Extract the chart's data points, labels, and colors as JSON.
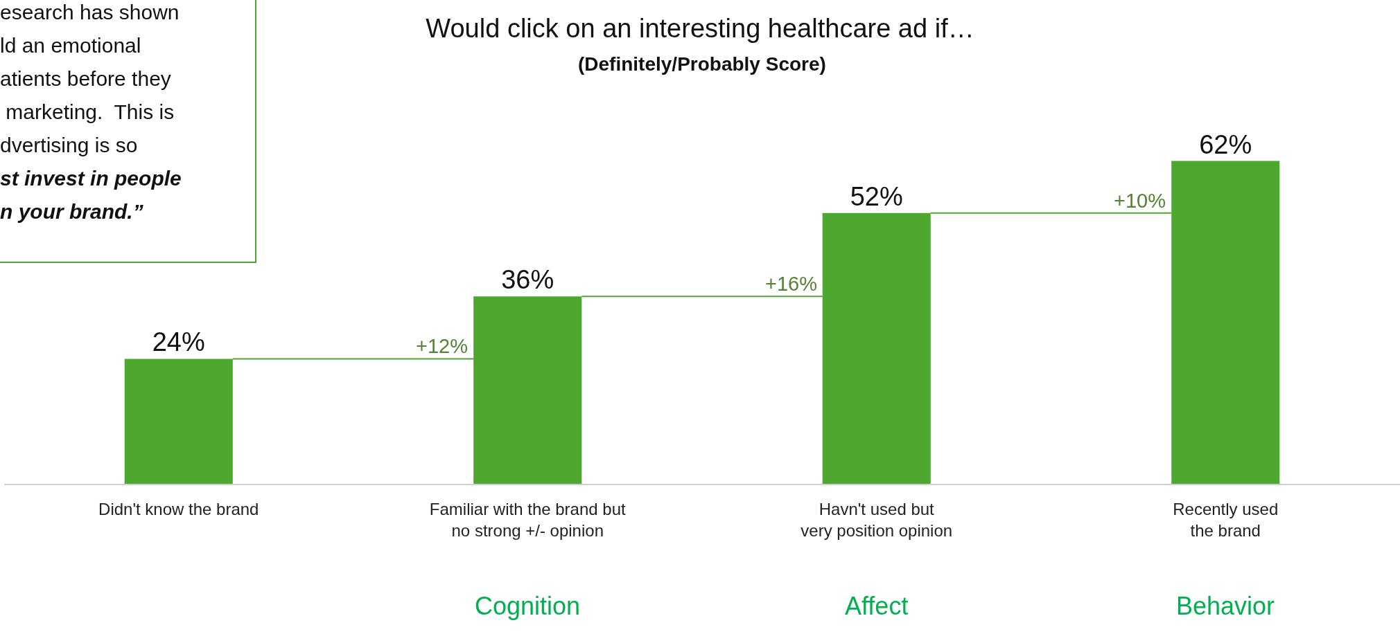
{
  "chart_data": {
    "type": "bar",
    "title": "Would click on an interesting healthcare ad if…",
    "subtitle": "(Definitely/Probably Score)",
    "categories": [
      "Didn't know the brand",
      "Familiar with the brand but\nno strong +/- opinion",
      "Havn't used but\nvery position opinion",
      "Recently used\nthe brand"
    ],
    "values": [
      24,
      36,
      52,
      62
    ],
    "value_labels": [
      "24%",
      "36%",
      "52%",
      "62%"
    ],
    "color": "#4ea72e",
    "grid": false,
    "legend": false,
    "annotations": [
      "+12%",
      "+16%",
      "+10%",
      "Cognition",
      "Affect",
      "Behavior",
      "esearch has shown\nld an emotional\natients before they\n marketing.  This is\ndvertising is so\nst invest in people\nn your brand.”"
    ]
  }
}
